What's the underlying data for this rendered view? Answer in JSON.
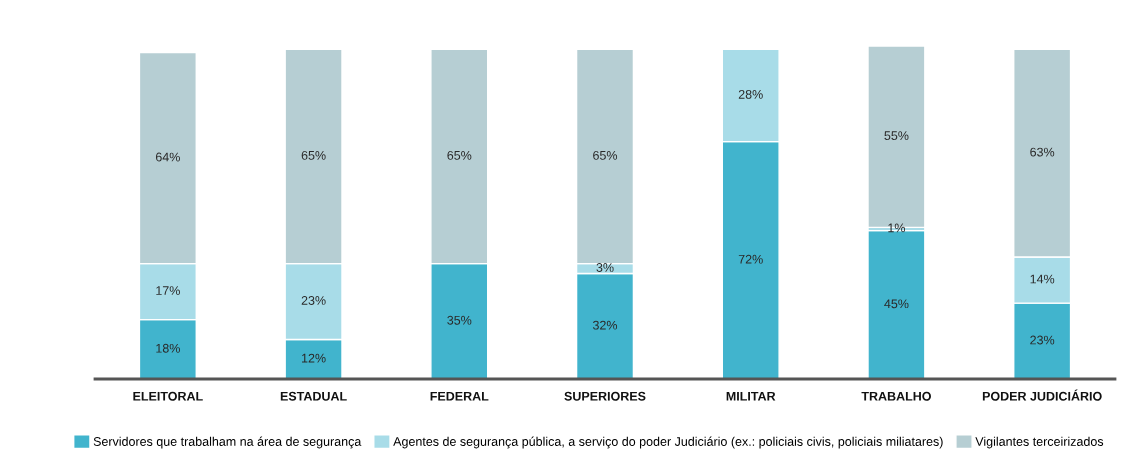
{
  "chart_data": {
    "type": "bar",
    "stacked": true,
    "legend": "bottom",
    "tick_labels": "x",
    "categories": [
      "ELEITORAL",
      "ESTADUAL",
      "FEDERAL",
      "SUPERIORES",
      "MILITAR",
      "TRABALHO",
      "PODER JUDICIÁRIO"
    ],
    "series": [
      {
        "name": "Servidores que trabalham na área de segurança",
        "color": "#41b4cd",
        "values": [
          18,
          12,
          35,
          32,
          72,
          45,
          23
        ],
        "value_labels": [
          "18%",
          "12%",
          "35%",
          "32%",
          "72%",
          "45%",
          "23%"
        ]
      },
      {
        "name": "Agentes de segurança pública, a serviço do poder Judiciário (ex.: policiais civis, policiais miliatares)",
        "color": "#a8dce8",
        "values": [
          17,
          23,
          null,
          3,
          28,
          1,
          14
        ],
        "value_labels": [
          "17%",
          "23%",
          null,
          "3%",
          "28%",
          "1%",
          "14%"
        ]
      },
      {
        "name": "Vigilantes terceirizados",
        "color": "#b6ced3",
        "values": [
          64,
          65,
          65,
          65,
          null,
          55,
          63
        ],
        "value_labels": [
          "64%",
          "65%",
          "65%",
          "65%",
          null,
          "55%",
          "63%"
        ]
      }
    ]
  }
}
